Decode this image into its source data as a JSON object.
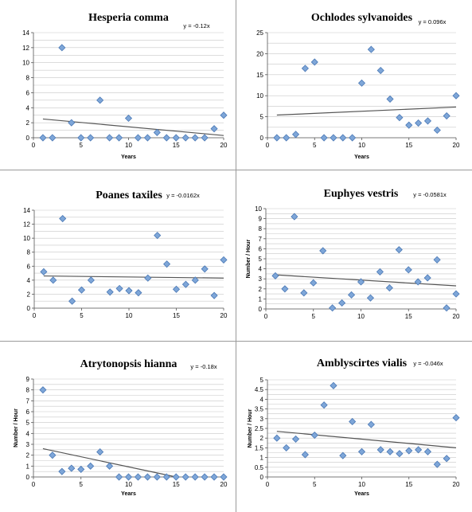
{
  "colors": {
    "point_fill": "#7ea6d8",
    "point_stroke": "#4a78b5",
    "trend": "#555555",
    "grid": "#c8c8c8",
    "divider": "#9a9a9a"
  },
  "chart_data": [
    {
      "type": "scatter",
      "title": "Hesperia comma",
      "equation": "y = -0.12x",
      "xlabel": "Years",
      "ylabel": "",
      "xlim": [
        0,
        20
      ],
      "ylim": [
        0,
        14
      ],
      "xticks": [
        0,
        5,
        10,
        15,
        20
      ],
      "yticks": [
        0,
        2,
        4,
        6,
        8,
        10,
        12,
        14
      ],
      "x": [
        1,
        2,
        3,
        4,
        5,
        6,
        7,
        8,
        9,
        10,
        11,
        12,
        13,
        14,
        15,
        16,
        17,
        18,
        19,
        20
      ],
      "y": [
        0,
        0,
        12,
        2,
        0,
        0,
        5,
        0,
        0,
        2.6,
        0,
        0,
        0.7,
        0,
        0,
        0,
        0,
        0,
        1.2,
        3
      ],
      "trend": {
        "start": [
          1,
          2.5
        ],
        "end": [
          20,
          0.3
        ]
      },
      "grid": true,
      "equation_position": "top-right"
    },
    {
      "type": "scatter",
      "title": "Ochlodes sylvanoides",
      "equation": "y = 0.096x",
      "xlabel": "Years",
      "ylabel": "",
      "xlim": [
        0,
        20
      ],
      "ylim": [
        0,
        25
      ],
      "xticks": [
        0,
        5,
        10,
        15,
        20
      ],
      "yticks": [
        0,
        5,
        10,
        15,
        20,
        25
      ],
      "x": [
        1,
        2,
        3,
        4,
        5,
        6,
        7,
        8,
        9,
        10,
        11,
        12,
        13,
        14,
        15,
        16,
        17,
        18,
        19,
        20
      ],
      "y": [
        0,
        0,
        0.8,
        16.5,
        18,
        0,
        0,
        0,
        0,
        13,
        21,
        16,
        9.2,
        4.8,
        3,
        3.5,
        4,
        1.8,
        5.2,
        10
      ],
      "trend": {
        "start": [
          1,
          5.4
        ],
        "end": [
          20,
          7.3
        ]
      },
      "grid": true,
      "equation_position": "top-right"
    },
    {
      "type": "scatter",
      "title": "Poanes taxiles",
      "equation": "y = -0.0162x",
      "xlabel": "",
      "ylabel": "",
      "xlim": [
        0,
        20
      ],
      "ylim": [
        0,
        14
      ],
      "xticks": [
        0,
        5,
        10,
        15,
        20
      ],
      "yticks": [
        0,
        2,
        4,
        6,
        8,
        10,
        12,
        14
      ],
      "x": [
        1,
        2,
        3,
        4,
        5,
        6,
        8,
        9,
        10,
        11,
        12,
        13,
        14,
        15,
        16,
        17,
        18,
        19,
        20
      ],
      "y": [
        5.2,
        4,
        12.8,
        1,
        2.6,
        4,
        2.3,
        2.8,
        2.5,
        2.2,
        4.3,
        10.4,
        6.3,
        2.7,
        3.4,
        4,
        5.6,
        1.8,
        6.9
      ],
      "trend": {
        "start": [
          1,
          4.6
        ],
        "end": [
          20,
          4.3
        ]
      },
      "grid": true,
      "equation_position": "top-right"
    },
    {
      "type": "scatter",
      "title": "Euphyes vestris",
      "equation": "y = -0.0581x",
      "xlabel": "",
      "ylabel": "Number / Hour",
      "xlim": [
        0,
        20
      ],
      "ylim": [
        0,
        10
      ],
      "xticks": [
        0,
        5,
        10,
        15,
        20
      ],
      "yticks": [
        0,
        1,
        2,
        3,
        4,
        5,
        6,
        7,
        8,
        9,
        10
      ],
      "x": [
        1,
        2,
        3,
        4,
        5,
        6,
        7,
        8,
        9,
        10,
        11,
        12,
        13,
        14,
        15,
        16,
        17,
        18,
        19,
        20
      ],
      "y": [
        3.3,
        2,
        9.2,
        1.6,
        2.6,
        5.8,
        0.1,
        0.6,
        1.4,
        2.7,
        1.1,
        3.7,
        2.1,
        5.9,
        3.9,
        2.7,
        3.1,
        4.9,
        0.1,
        1.5
      ],
      "trend": {
        "start": [
          1,
          3.4
        ],
        "end": [
          20,
          2.3
        ]
      },
      "grid": true,
      "equation_position": "top-right"
    },
    {
      "type": "scatter",
      "title": "Atrytonopsis hianna",
      "equation": "y = -0.18x",
      "xlabel": "Years",
      "ylabel": "Number / Hour",
      "xlim": [
        0,
        20
      ],
      "ylim": [
        0,
        9
      ],
      "xticks": [
        0,
        5,
        10,
        15,
        20
      ],
      "yticks": [
        0,
        1,
        2,
        3,
        4,
        5,
        6,
        7,
        8,
        9
      ],
      "x": [
        1,
        2,
        3,
        4,
        5,
        6,
        7,
        8,
        9,
        10,
        11,
        12,
        13,
        14,
        15,
        16,
        17,
        18,
        19,
        20
      ],
      "y": [
        8,
        2,
        0.5,
        0.8,
        0.7,
        1,
        2.3,
        1,
        0,
        0,
        0,
        0,
        0,
        0,
        0,
        0,
        0,
        0,
        0,
        0
      ],
      "trend": {
        "start": [
          1,
          2.6
        ],
        "end": [
          15,
          0
        ]
      },
      "grid": true,
      "equation_position": "top-right"
    },
    {
      "type": "scatter",
      "title": "Amblyscirtes vialis",
      "equation": "y = -0.046x",
      "xlabel": "Years",
      "ylabel": "Number / Hour",
      "xlim": [
        0,
        20
      ],
      "ylim": [
        0,
        5
      ],
      "xticks": [
        0,
        5,
        10,
        15,
        20
      ],
      "yticks": [
        0,
        0.5,
        1,
        1.5,
        2,
        2.5,
        3,
        3.5,
        4,
        4.5,
        5
      ],
      "x": [
        1,
        2,
        3,
        4,
        5,
        6,
        7,
        8,
        9,
        10,
        11,
        12,
        13,
        14,
        15,
        16,
        17,
        18,
        19,
        20
      ],
      "y": [
        2,
        1.5,
        1.95,
        1.15,
        2.15,
        3.7,
        4.7,
        1.1,
        2.85,
        1.3,
        2.7,
        1.4,
        1.3,
        1.2,
        1.35,
        1.4,
        1.3,
        0.65,
        0.95,
        3.05
      ],
      "trend": {
        "start": [
          1,
          2.35
        ],
        "end": [
          20,
          1.5
        ]
      },
      "grid": true,
      "equation_position": "top-right"
    }
  ]
}
